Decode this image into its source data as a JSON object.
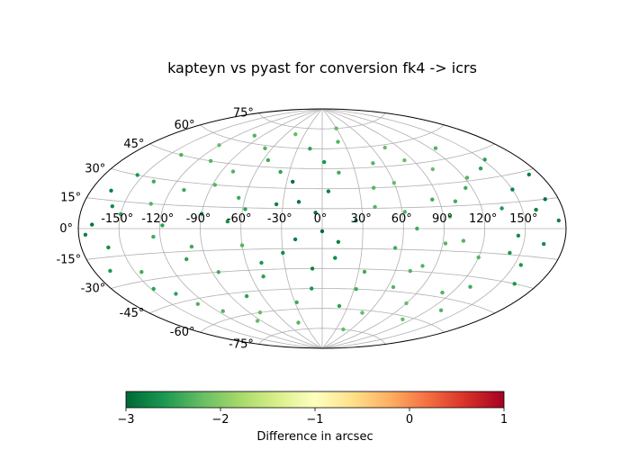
{
  "chart_data": {
    "type": "scatter",
    "projection": "aitoff",
    "title": "kapteyn vs pyast for conversion fk4 -> icrs",
    "grid": true,
    "lon_ticks": [
      -150,
      -120,
      -90,
      -60,
      -30,
      0,
      30,
      60,
      90,
      120,
      150
    ],
    "lon_tick_labels": [
      "-150°",
      "-120°",
      "-90°",
      "-60°",
      "-30°",
      "0°",
      "30°",
      "60°",
      "90°",
      "120°",
      "150°"
    ],
    "lat_ticks": [
      -75,
      -60,
      -45,
      -30,
      -15,
      0,
      15,
      30,
      45,
      60,
      75
    ],
    "lat_tick_labels": [
      "-75°",
      "-60°",
      "-45°",
      "-30°",
      "-15°",
      "0°",
      "15°",
      "30°",
      "45°",
      "60°",
      "75°"
    ],
    "colorbar": {
      "label": "Difference in arcsec",
      "range": [
        -3,
        1
      ],
      "ticks": [
        -3,
        -2,
        -1,
        0,
        1
      ],
      "tick_labels": [
        "−3",
        "−2",
        "−1",
        "0",
        "1"
      ],
      "colormap": "RdYlGn_r",
      "stops": [
        "#006837",
        "#1a9850",
        "#66bd63",
        "#a6d96a",
        "#d9ef8b",
        "#ffffbf",
        "#fee08b",
        "#fdae61",
        "#f46d43",
        "#d73027",
        "#a50026"
      ]
    },
    "points": [
      {
        "lon": -170,
        "lat": 2,
        "d": -2.9
      },
      {
        "lon": -165,
        "lat": 20,
        "d": -2.8
      },
      {
        "lon": -160,
        "lat": -10,
        "d": -2.7
      },
      {
        "lon": -155,
        "lat": 30,
        "d": -2.6
      },
      {
        "lon": -150,
        "lat": 8,
        "d": -2.5
      },
      {
        "lon": -145,
        "lat": -25,
        "d": -2.4
      },
      {
        "lon": -140,
        "lat": 45,
        "d": -2.3
      },
      {
        "lon": -135,
        "lat": -40,
        "d": -2.5
      },
      {
        "lon": -130,
        "lat": 15,
        "d": -2.3
      },
      {
        "lon": -125,
        "lat": -5,
        "d": -2.4
      },
      {
        "lon": -120,
        "lat": 55,
        "d": -2.2
      },
      {
        "lon": -115,
        "lat": -55,
        "d": -2.3
      },
      {
        "lon": -110,
        "lat": 25,
        "d": -2.4
      },
      {
        "lon": -105,
        "lat": -20,
        "d": -2.5
      },
      {
        "lon": -100,
        "lat": 65,
        "d": -2.3
      },
      {
        "lon": -95,
        "lat": -65,
        "d": -2.2
      },
      {
        "lon": -90,
        "lat": 10,
        "d": -2.6
      },
      {
        "lon": -85,
        "lat": -30,
        "d": -2.4
      },
      {
        "lon": -80,
        "lat": 40,
        "d": -2.3
      },
      {
        "lon": -75,
        "lat": -48,
        "d": -2.5
      },
      {
        "lon": -70,
        "lat": 5,
        "d": -2.7
      },
      {
        "lon": -65,
        "lat": 22,
        "d": -2.4
      },
      {
        "lon": -60,
        "lat": -12,
        "d": -2.3
      },
      {
        "lon": -55,
        "lat": 50,
        "d": -2.4
      },
      {
        "lon": -50,
        "lat": -35,
        "d": -2.5
      },
      {
        "lon": -45,
        "lat": 70,
        "d": -2.2
      },
      {
        "lon": -40,
        "lat": -70,
        "d": -2.3
      },
      {
        "lon": -35,
        "lat": 18,
        "d": -2.8
      },
      {
        "lon": -30,
        "lat": -18,
        "d": -2.7
      },
      {
        "lon": -25,
        "lat": 35,
        "d": -2.9
      },
      {
        "lon": -20,
        "lat": -8,
        "d": -2.8
      },
      {
        "lon": -15,
        "lat": 60,
        "d": -2.5
      },
      {
        "lon": -10,
        "lat": -45,
        "d": -2.6
      },
      {
        "lon": -5,
        "lat": 12,
        "d": -2.9
      },
      {
        "lon": 0,
        "lat": -2,
        "d": -3.0
      },
      {
        "lon": 5,
        "lat": 28,
        "d": -2.8
      },
      {
        "lon": 10,
        "lat": -22,
        "d": -2.7
      },
      {
        "lon": 15,
        "lat": 42,
        "d": -2.4
      },
      {
        "lon": 20,
        "lat": -58,
        "d": -2.5
      },
      {
        "lon": 25,
        "lat": 6,
        "d": -2.6
      },
      {
        "lon": 30,
        "lat": 75,
        "d": -2.2
      },
      {
        "lon": 35,
        "lat": -32,
        "d": -2.4
      },
      {
        "lon": 40,
        "lat": 16,
        "d": -2.3
      },
      {
        "lon": 45,
        "lat": -75,
        "d": -2.2
      },
      {
        "lon": 50,
        "lat": 48,
        "d": -2.3
      },
      {
        "lon": 55,
        "lat": -14,
        "d": -2.4
      },
      {
        "lon": 60,
        "lat": 33,
        "d": -2.2
      },
      {
        "lon": 65,
        "lat": -42,
        "d": -2.3
      },
      {
        "lon": 70,
        "lat": 0,
        "d": -2.4
      },
      {
        "lon": 75,
        "lat": 58,
        "d": -2.2
      },
      {
        "lon": 80,
        "lat": -26,
        "d": -2.3
      },
      {
        "lon": 85,
        "lat": 20,
        "d": -2.4
      },
      {
        "lon": 90,
        "lat": -52,
        "d": -2.2
      },
      {
        "lon": 95,
        "lat": 8,
        "d": -2.3
      },
      {
        "lon": 100,
        "lat": 40,
        "d": -2.2
      },
      {
        "lon": 105,
        "lat": -8,
        "d": -2.3
      },
      {
        "lon": 110,
        "lat": -62,
        "d": -2.2
      },
      {
        "lon": 115,
        "lat": 26,
        "d": -2.4
      },
      {
        "lon": 120,
        "lat": -18,
        "d": -2.3
      },
      {
        "lon": 125,
        "lat": 52,
        "d": -2.3
      },
      {
        "lon": 130,
        "lat": -36,
        "d": -2.4
      },
      {
        "lon": 135,
        "lat": 12,
        "d": -2.6
      },
      {
        "lon": 140,
        "lat": 36,
        "d": -2.5
      },
      {
        "lon": 145,
        "lat": -4,
        "d": -2.7
      },
      {
        "lon": 150,
        "lat": 22,
        "d": -2.8
      },
      {
        "lon": 155,
        "lat": -20,
        "d": -2.6
      },
      {
        "lon": 160,
        "lat": 10,
        "d": -2.8
      },
      {
        "lon": 165,
        "lat": -8,
        "d": -2.7
      },
      {
        "lon": 170,
        "lat": 15,
        "d": -2.9
      },
      {
        "lon": 175,
        "lat": 4,
        "d": -2.8
      },
      {
        "lon": -175,
        "lat": -3,
        "d": -2.8
      },
      {
        "lon": -168,
        "lat": -22,
        "d": -2.6
      },
      {
        "lon": -158,
        "lat": 12,
        "d": -2.7
      },
      {
        "lon": -148,
        "lat": -35,
        "d": -2.5
      },
      {
        "lon": -138,
        "lat": 28,
        "d": -2.4
      },
      {
        "lon": -128,
        "lat": -48,
        "d": -2.3
      },
      {
        "lon": -118,
        "lat": 2,
        "d": -2.5
      },
      {
        "lon": -108,
        "lat": 45,
        "d": -2.3
      },
      {
        "lon": -98,
        "lat": -12,
        "d": -2.4
      },
      {
        "lon": -88,
        "lat": 30,
        "d": -2.3
      },
      {
        "lon": -78,
        "lat": -60,
        "d": -2.2
      },
      {
        "lon": -68,
        "lat": 58,
        "d": -2.3
      },
      {
        "lon": -58,
        "lat": 14,
        "d": -2.5
      },
      {
        "lon": -48,
        "lat": -25,
        "d": -2.6
      },
      {
        "lon": -38,
        "lat": 42,
        "d": -2.5
      },
      {
        "lon": -28,
        "lat": -55,
        "d": -2.4
      },
      {
        "lon": -18,
        "lat": 20,
        "d": -2.9
      },
      {
        "lon": -8,
        "lat": -30,
        "d": -2.8
      },
      {
        "lon": 2,
        "lat": 50,
        "d": -2.6
      },
      {
        "lon": 12,
        "lat": -10,
        "d": -2.8
      },
      {
        "lon": 22,
        "lat": 65,
        "d": -2.3
      },
      {
        "lon": 32,
        "lat": -45,
        "d": -2.4
      },
      {
        "lon": 42,
        "lat": 30,
        "d": -2.3
      },
      {
        "lon": 52,
        "lat": -62,
        "d": -2.2
      },
      {
        "lon": 62,
        "lat": 12,
        "d": -2.3
      },
      {
        "lon": 72,
        "lat": -30,
        "d": -2.3
      },
      {
        "lon": 82,
        "lat": 48,
        "d": -2.2
      },
      {
        "lon": 92,
        "lat": -10,
        "d": -2.3
      },
      {
        "lon": 102,
        "lat": 18,
        "d": -2.4
      },
      {
        "lon": 112,
        "lat": -42,
        "d": -2.3
      },
      {
        "lon": 122,
        "lat": 32,
        "d": -2.3
      },
      {
        "lon": 132,
        "lat": -52,
        "d": -2.3
      },
      {
        "lon": 142,
        "lat": -14,
        "d": -2.6
      },
      {
        "lon": 152,
        "lat": 40,
        "d": -2.5
      },
      {
        "lon": 162,
        "lat": -30,
        "d": -2.6
      },
      {
        "lon": 172,
        "lat": 28,
        "d": -2.8
      }
    ]
  }
}
